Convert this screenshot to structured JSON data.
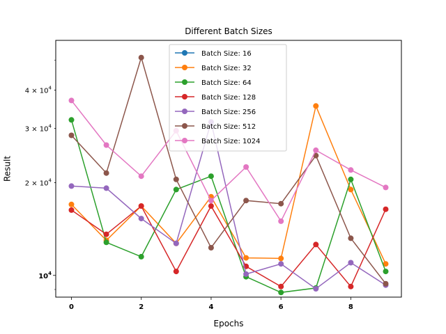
{
  "chart_data": {
    "type": "line",
    "title": "Different Batch Sizes",
    "xlabel": "Epochs",
    "ylabel": "Result",
    "yscale": "log",
    "xlim": [
      -0.45,
      9.45
    ],
    "ylim": [
      8500,
      58000
    ],
    "x": [
      0,
      1,
      2,
      3,
      4,
      5,
      6,
      7,
      8,
      9
    ],
    "xticks": [
      0,
      2,
      4,
      6,
      8
    ],
    "xtick_labels": [
      "0",
      "2",
      "4",
      "6",
      "8"
    ],
    "yticks": [
      {
        "value": 10000,
        "label": "10",
        "exp": "4",
        "bold": true
      },
      {
        "value": 20000,
        "label": "2 × 10",
        "exp": "4",
        "bold": false
      },
      {
        "value": 30000,
        "label": "3 × 10",
        "exp": "4",
        "bold": false
      },
      {
        "value": 40000,
        "label": "4 × 10",
        "exp": "4",
        "bold": false
      }
    ],
    "legend_position": "top-center",
    "grid": false,
    "series": [
      {
        "name": "Batch Size: 16",
        "color": "#1f77b4",
        "values": [
          null,
          null,
          null,
          null,
          null,
          null,
          null,
          null,
          null,
          null
        ]
      },
      {
        "name": "Batch Size: 32",
        "color": "#ff7f0e",
        "values": [
          17000,
          13000,
          16800,
          12700,
          18000,
          11400,
          11350,
          35500,
          19000,
          10900
        ]
      },
      {
        "name": "Batch Size: 64",
        "color": "#2ca02c",
        "values": [
          32000,
          12800,
          11500,
          19000,
          21000,
          9900,
          8800,
          9100,
          20500,
          10300
        ]
      },
      {
        "name": "Batch Size: 128",
        "color": "#d62728",
        "values": [
          16300,
          13600,
          16800,
          10300,
          16800,
          10700,
          9200,
          12600,
          9200,
          16400
        ]
      },
      {
        "name": "Batch Size: 256",
        "color": "#9467bd",
        "values": [
          19500,
          19200,
          15300,
          12700,
          31500,
          10100,
          10900,
          9050,
          11000,
          9300
        ]
      },
      {
        "name": "Batch Size: 512",
        "color": "#8c564b",
        "values": [
          28500,
          21500,
          51000,
          20500,
          12300,
          17500,
          17100,
          24500,
          13200,
          9400
        ]
      },
      {
        "name": "Batch Size: 1024",
        "color": "#e377c2",
        "values": [
          37000,
          26500,
          21000,
          29500,
          17500,
          22500,
          15000,
          25500,
          22000,
          19300
        ]
      }
    ]
  }
}
